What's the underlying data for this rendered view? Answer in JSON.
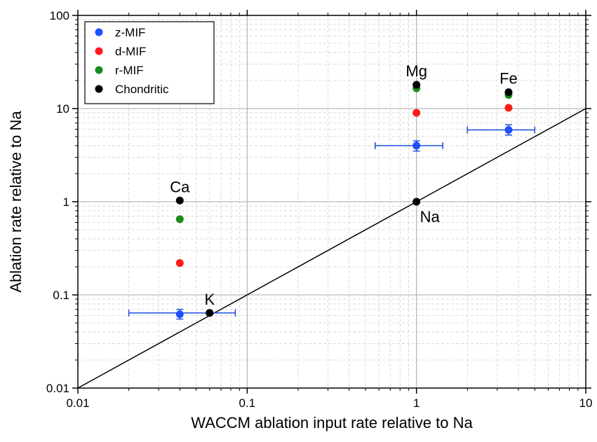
{
  "chart_data": {
    "type": "scatter",
    "title": "",
    "xlabel": "WACCM ablation input rate relative to Na",
    "ylabel": "Ablation rate relative to Na",
    "xscale": "log",
    "yscale": "log",
    "xlim": [
      0.01,
      10
    ],
    "ylim": [
      0.01,
      100
    ],
    "x_ticks": [
      0.01,
      0.1,
      1,
      10
    ],
    "x_tick_labels": [
      "0.01",
      "0.1",
      "1",
      "10"
    ],
    "y_ticks": [
      0.01,
      0.1,
      1,
      10,
      100
    ],
    "y_tick_labels": [
      "0.01",
      "0.1",
      "1",
      "10",
      "100"
    ],
    "grid": true,
    "legend_position": "top-left",
    "colors": {
      "z-MIF": "#1f4fff",
      "d-MIF": "#ff1a1a",
      "r-MIF": "#1a8c1a",
      "Chondritic": "#000000",
      "error_bar": "#1f4fe0",
      "line": "#000000"
    },
    "series": [
      {
        "name": "z-MIF",
        "points": [
          {
            "x": 0.04,
            "y": 0.062,
            "y_err_low": 0.055,
            "y_err_high": 0.07
          },
          {
            "x": 0.06,
            "y": 0.064,
            "x_err_low": 0.02,
            "x_err_high": 0.085
          },
          {
            "x": 1,
            "y": 4.0,
            "x_err_low": 0.57,
            "x_err_high": 1.43,
            "y_err_low": 3.5,
            "y_err_high": 4.5
          },
          {
            "x": 3.5,
            "y": 5.9,
            "x_err_low": 2.0,
            "x_err_high": 5.0,
            "y_err_low": 5.2,
            "y_err_high": 6.7
          }
        ]
      },
      {
        "name": "d-MIF",
        "points": [
          {
            "x": 0.04,
            "y": 0.22
          },
          {
            "x": 1,
            "y": 9.0
          },
          {
            "x": 3.5,
            "y": 10.2
          }
        ]
      },
      {
        "name": "r-MIF",
        "points": [
          {
            "x": 0.04,
            "y": 0.65
          },
          {
            "x": 1,
            "y": 16.5
          },
          {
            "x": 3.5,
            "y": 14.0
          }
        ]
      },
      {
        "name": "Chondritic",
        "points": [
          {
            "x": 0.04,
            "y": 1.03
          },
          {
            "x": 1,
            "y": 18.0
          },
          {
            "x": 3.5,
            "y": 15.0
          },
          {
            "x": 0.06,
            "y": 0.064
          },
          {
            "x": 1,
            "y": 1.0
          }
        ]
      }
    ],
    "reference_line": {
      "x": [
        0.01,
        10
      ],
      "y": [
        0.01,
        10
      ]
    },
    "annotations": [
      {
        "text": "Ca",
        "x": 0.04,
        "y": 1.03,
        "anchor": "above"
      },
      {
        "text": "Mg",
        "x": 1,
        "y": 18.0,
        "anchor": "above"
      },
      {
        "text": "Fe",
        "x": 3.5,
        "y": 15.0,
        "anchor": "above"
      },
      {
        "text": "K",
        "x": 0.06,
        "y": 0.064,
        "anchor": "above"
      },
      {
        "text": "Na",
        "x": 1,
        "y": 1.0,
        "anchor": "below-right"
      }
    ]
  }
}
